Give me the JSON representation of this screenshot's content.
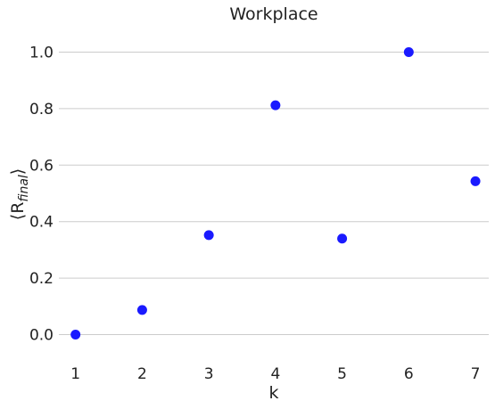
{
  "chart_data": {
    "type": "scatter",
    "title": "Workplace",
    "xlabel": "k",
    "ylabel": "⟨R",
    "ylabel_sub": "final",
    "ylabel_close": "⟩",
    "x": [
      1,
      2,
      3,
      4,
      5,
      6,
      7
    ],
    "series": [
      {
        "values": [
          0.0,
          0.087,
          0.352,
          0.812,
          0.34,
          1.0,
          0.543
        ],
        "color": "#1a1aff"
      }
    ],
    "xticks": [
      "1",
      "2",
      "3",
      "4",
      "5",
      "6",
      "7"
    ],
    "yticks": [
      "0.0",
      "0.2",
      "0.4",
      "0.6",
      "0.8",
      "1.0"
    ],
    "xlim": [
      0.75,
      7.2
    ],
    "ylim": [
      -0.09,
      1.09
    ],
    "grid": "horizontal"
  }
}
